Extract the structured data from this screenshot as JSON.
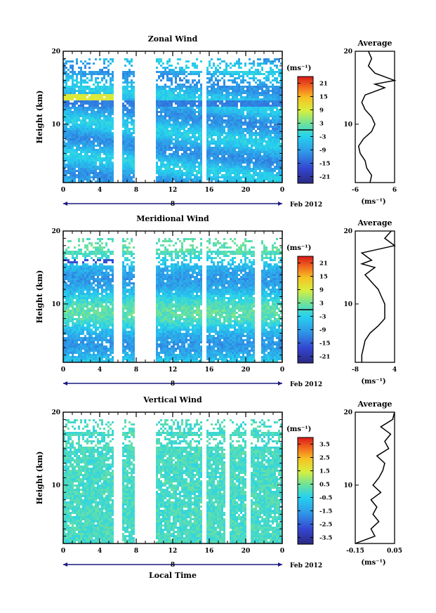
{
  "figure": {
    "x_axis_title": "Local Time",
    "date_label": "8",
    "month_label": "Feb 2012"
  },
  "chart_data": [
    {
      "type": "heatmap",
      "title": "Zonal Wind",
      "ylabel": "Height (km)",
      "xlabel": "Local Time",
      "x_ticks": [
        "0",
        "4",
        "8",
        "12",
        "16",
        "20",
        "0"
      ],
      "y_ticks": [
        "10",
        "20"
      ],
      "xlim": [
        0,
        24
      ],
      "ylim": [
        2,
        20
      ],
      "colorbar": {
        "unit_label": "(ms⁻¹)",
        "ticks": [
          "21",
          "15",
          "9",
          "3",
          "-3",
          "-9",
          "-15",
          "-21"
        ],
        "range": [
          -24,
          24
        ],
        "zero_line": true
      },
      "data_gaps_hours": [
        [
          5.5,
          6.3
        ],
        [
          7.7,
          10.0
        ],
        [
          15.1,
          15.6
        ]
      ],
      "profile": {
        "title": "Average",
        "xlabel": "(ms⁻¹)",
        "x_ticks": [
          "-6",
          "6"
        ],
        "xlim": [
          -6,
          6
        ],
        "heights": [
          2,
          3,
          4,
          5,
          6,
          7,
          8,
          9,
          10,
          11,
          12,
          13,
          14,
          15,
          15.5,
          16,
          17,
          18,
          19,
          20
        ],
        "values": [
          -1.5,
          -1,
          -2.5,
          -3,
          -4.5,
          -5,
          -3.5,
          -1,
          0,
          -1,
          -3,
          -4,
          -3,
          3,
          0,
          6,
          0,
          -2,
          -1,
          -2
        ]
      }
    },
    {
      "type": "heatmap",
      "title": "Meridional Wind",
      "ylabel": "Height (km)",
      "xlabel": "Local Time",
      "x_ticks": [
        "0",
        "4",
        "8",
        "12",
        "16",
        "20",
        "0"
      ],
      "y_ticks": [
        "10",
        "20"
      ],
      "xlim": [
        0,
        24
      ],
      "ylim": [
        2,
        20
      ],
      "colorbar": {
        "unit_label": "(ms⁻¹)",
        "ticks": [
          "21",
          "15",
          "9",
          "3",
          "-3",
          "-9",
          "-15",
          "-21"
        ],
        "range": [
          -24,
          24
        ],
        "zero_line": true
      },
      "data_gaps_hours": [
        [
          5.5,
          6.3
        ],
        [
          7.7,
          10.0
        ],
        [
          15.1,
          15.6
        ],
        [
          21.0,
          21.6
        ]
      ],
      "profile": {
        "title": "Average",
        "xlabel": "(ms⁻¹)",
        "x_ticks": [
          "-8",
          "4"
        ],
        "xlim": [
          -8,
          4
        ],
        "heights": [
          2,
          3,
          4,
          5,
          6,
          7,
          8,
          9,
          10,
          11,
          12,
          13,
          14,
          15,
          15.5,
          16,
          17,
          18,
          19,
          20
        ],
        "values": [
          -6,
          -6,
          -5.5,
          -5,
          -3.5,
          -1,
          1,
          1,
          1,
          0,
          -1,
          -3,
          -5,
          -2,
          -6,
          -3,
          -6,
          4,
          1,
          3
        ]
      }
    },
    {
      "type": "heatmap",
      "title": "Vertical Wind",
      "ylabel": "Height (km)",
      "xlabel": "Local Time",
      "x_ticks": [
        "0",
        "4",
        "8",
        "12",
        "16",
        "20",
        "0"
      ],
      "y_ticks": [
        "10",
        "20"
      ],
      "xlim": [
        0,
        24
      ],
      "ylim": [
        2,
        20
      ],
      "colorbar": {
        "unit_label": "(ms⁻¹)",
        "ticks": [
          "3.5",
          "2.5",
          "1.5",
          "0.5",
          "-0.5",
          "-1.5",
          "-2.5",
          "-3.5"
        ],
        "range": [
          -4,
          4
        ],
        "zero_line": false
      },
      "data_gaps_hours": [
        [
          5.5,
          6.3
        ],
        [
          7.7,
          10.0
        ],
        [
          15.1,
          15.6
        ],
        [
          17.6,
          18.0
        ],
        [
          20.0,
          20.5
        ]
      ],
      "profile": {
        "title": "Average",
        "xlabel": "(ms⁻¹)",
        "x_ticks": [
          "-0.15",
          "0.05"
        ],
        "xlim": [
          -0.15,
          0.05
        ],
        "heights": [
          2,
          3,
          4,
          5,
          6,
          7,
          8,
          9,
          10,
          11,
          12,
          13,
          14,
          15,
          16,
          17,
          18,
          19,
          20
        ],
        "values": [
          -0.15,
          -0.05,
          -0.07,
          -0.03,
          -0.06,
          -0.04,
          -0.07,
          -0.02,
          -0.06,
          -0.03,
          -0.01,
          0.0,
          -0.04,
          0.02,
          0.0,
          0.03,
          -0.02,
          0.04,
          0.05
        ]
      }
    }
  ]
}
